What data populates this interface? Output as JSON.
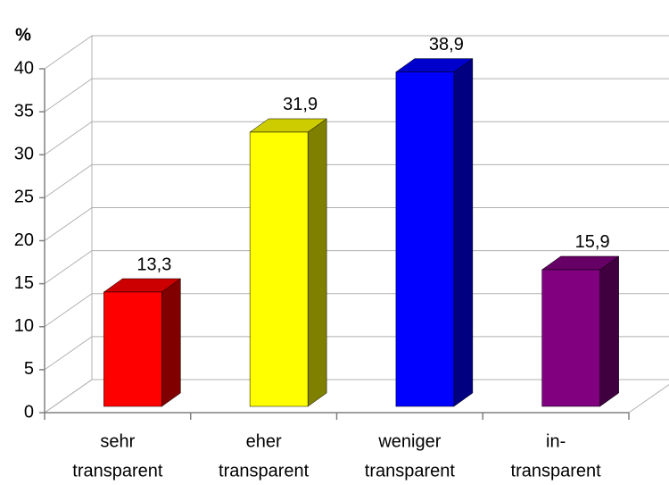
{
  "chart_data": {
    "type": "bar3d",
    "y_label": "%",
    "categories": [
      [
        "sehr",
        "transparent"
      ],
      [
        "eher",
        "transparent"
      ],
      [
        "weniger",
        "transparent"
      ],
      [
        "in-",
        "transparent"
      ]
    ],
    "values": [
      13.3,
      31.9,
      38.9,
      15.9
    ],
    "value_labels": [
      "13,3",
      "31,9",
      "38,9",
      "15,9"
    ],
    "colors": [
      "#ff0000",
      "#ffff00",
      "#0000ff",
      "#800080"
    ],
    "ylim": [
      0,
      40
    ],
    "yticks": [
      0,
      5,
      10,
      15,
      20,
      25,
      30,
      35,
      40
    ],
    "grid": true
  }
}
